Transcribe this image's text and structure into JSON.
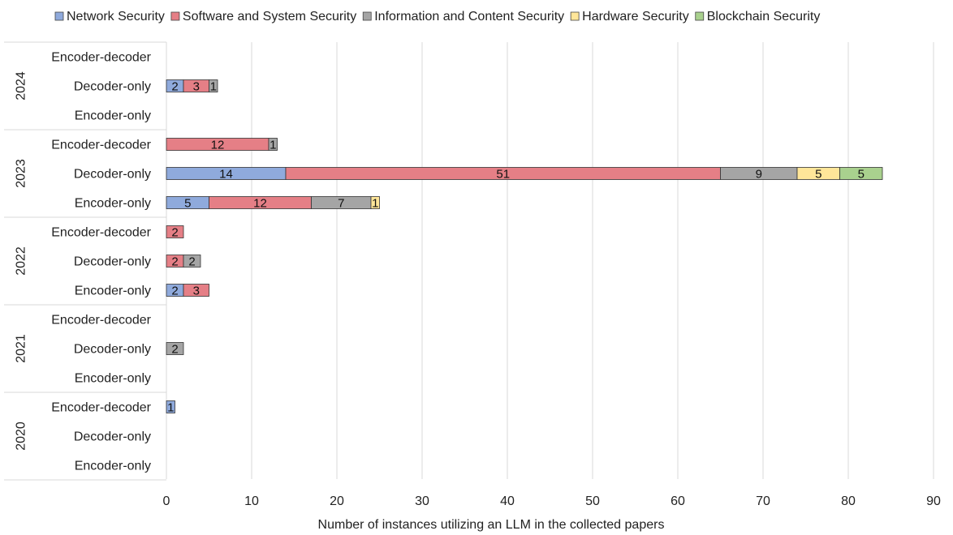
{
  "chart_data": {
    "type": "bar",
    "orientation": "horizontal",
    "stacked": true,
    "title": "",
    "xlabel": "Number of instances utilizing an LLM in the collected papers",
    "ylabel": "",
    "xlim": [
      0,
      90
    ],
    "xticks": [
      0,
      10,
      20,
      30,
      40,
      50,
      60,
      70,
      80,
      90
    ],
    "grid": true,
    "legend_position": "top",
    "series": [
      {
        "name": "Network Security",
        "color": "#8faadc"
      },
      {
        "name": "Software and System Security",
        "color": "#e57f86"
      },
      {
        "name": "Information and Content Security",
        "color": "#a5a5a5"
      },
      {
        "name": "Hardware Security",
        "color": "#ffe699"
      },
      {
        "name": "Blockchain Security",
        "color": "#a9d18e"
      }
    ],
    "groups": [
      {
        "year": "2024",
        "rows": [
          {
            "label": "Encoder-decoder",
            "values": [
              0,
              0,
              0,
              0,
              0
            ]
          },
          {
            "label": "Decoder-only",
            "values": [
              2,
              3,
              1,
              0,
              0
            ]
          },
          {
            "label": "Encoder-only",
            "values": [
              0,
              0,
              0,
              0,
              0
            ]
          }
        ]
      },
      {
        "year": "2023",
        "rows": [
          {
            "label": "Encoder-decoder",
            "values": [
              0,
              12,
              1,
              0,
              0
            ]
          },
          {
            "label": "Decoder-only",
            "values": [
              14,
              51,
              9,
              5,
              5
            ]
          },
          {
            "label": "Encoder-only",
            "values": [
              5,
              12,
              7,
              1,
              0
            ]
          }
        ]
      },
      {
        "year": "2022",
        "rows": [
          {
            "label": "Encoder-decoder",
            "values": [
              0,
              2,
              0,
              0,
              0
            ]
          },
          {
            "label": "Decoder-only",
            "values": [
              0,
              2,
              2,
              0,
              0
            ]
          },
          {
            "label": "Encoder-only",
            "values": [
              2,
              3,
              0,
              0,
              0
            ]
          }
        ]
      },
      {
        "year": "2021",
        "rows": [
          {
            "label": "Encoder-decoder",
            "values": [
              0,
              0,
              0,
              0,
              0
            ]
          },
          {
            "label": "Decoder-only",
            "values": [
              0,
              0,
              2,
              0,
              0
            ]
          },
          {
            "label": "Encoder-only",
            "values": [
              0,
              0,
              0,
              0,
              0
            ]
          }
        ]
      },
      {
        "year": "2020",
        "rows": [
          {
            "label": "Encoder-decoder",
            "values": [
              1,
              0,
              0,
              0,
              0
            ]
          },
          {
            "label": "Decoder-only",
            "values": [
              0,
              0,
              0,
              0,
              0
            ]
          },
          {
            "label": "Encoder-only",
            "values": [
              0,
              0,
              0,
              0,
              0
            ]
          }
        ]
      }
    ]
  }
}
